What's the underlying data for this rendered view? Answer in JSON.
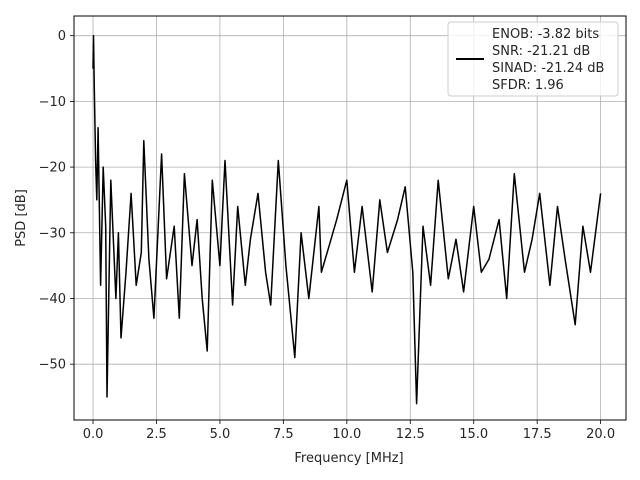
{
  "chart_data": {
    "type": "line",
    "title": "",
    "xlabel": "Frequency [MHz]",
    "ylabel": "PSD [dB]",
    "xlim": [
      -0.75,
      21
    ],
    "ylim": [
      -58.5,
      3
    ],
    "xticks": [
      0.0,
      2.5,
      5.0,
      7.5,
      10.0,
      12.5,
      15.0,
      17.5,
      20.0
    ],
    "xtick_labels": [
      "0.0",
      "2.5",
      "5.0",
      "7.5",
      "10.0",
      "12.5",
      "15.0",
      "17.5",
      "20.0"
    ],
    "yticks": [
      0,
      -10,
      -20,
      -30,
      -40,
      -50
    ],
    "ytick_labels": [
      "0",
      "−10",
      "−20",
      "−30",
      "−40",
      "−50"
    ],
    "grid": true,
    "legend_placement": "top-right",
    "series": [
      {
        "name": "ENOB: -3.82 bits\nSNR: -21.21 dB\nSINAD: -21.24 dB\nSFDR: 1.96",
        "color": "#000000",
        "x": [
          0.0,
          0.02,
          0.05,
          0.1,
          0.15,
          0.2,
          0.3,
          0.4,
          0.5,
          0.55,
          0.7,
          0.9,
          1.0,
          1.1,
          1.3,
          1.5,
          1.7,
          1.9,
          2.0,
          2.2,
          2.4,
          2.7,
          2.9,
          3.2,
          3.4,
          3.6,
          3.9,
          4.1,
          4.3,
          4.5,
          4.7,
          5.0,
          5.2,
          5.5,
          5.7,
          6.0,
          6.2,
          6.5,
          6.8,
          7.0,
          7.3,
          7.6,
          7.95,
          8.2,
          8.5,
          8.9,
          9.0,
          9.3,
          9.6,
          10.0,
          10.3,
          10.6,
          11.0,
          11.3,
          11.6,
          12.0,
          12.3,
          12.6,
          12.75,
          13.0,
          13.3,
          13.6,
          14.0,
          14.3,
          14.6,
          15.0,
          15.3,
          15.6,
          16.0,
          16.3,
          16.6,
          17.0,
          17.3,
          17.6,
          18.0,
          18.3,
          18.6,
          19.0,
          19.3,
          19.6,
          20.0
        ],
        "y": [
          -5,
          0,
          -8,
          -19,
          -25,
          -14,
          -38,
          -20,
          -29,
          -55,
          -22,
          -40,
          -30,
          -46,
          -36,
          -24,
          -38,
          -33,
          -16,
          -34,
          -43,
          -18,
          -37,
          -29,
          -43,
          -21,
          -35,
          -28,
          -40,
          -48,
          -22,
          -35,
          -19,
          -41,
          -26,
          -38,
          -31,
          -24,
          -36,
          -41,
          -19,
          -35,
          -49,
          -30,
          -40,
          -26,
          -36,
          -32,
          -28,
          -22,
          -36,
          -26,
          -39,
          -25,
          -33,
          -28,
          -23,
          -36,
          -56,
          -29,
          -38,
          -22,
          -37,
          -31,
          -39,
          -26,
          -36,
          -34,
          -28,
          -40,
          -21,
          -36,
          -31,
          -24,
          -38,
          -26,
          -34,
          -44,
          -29,
          -36,
          -24
        ]
      }
    ]
  }
}
